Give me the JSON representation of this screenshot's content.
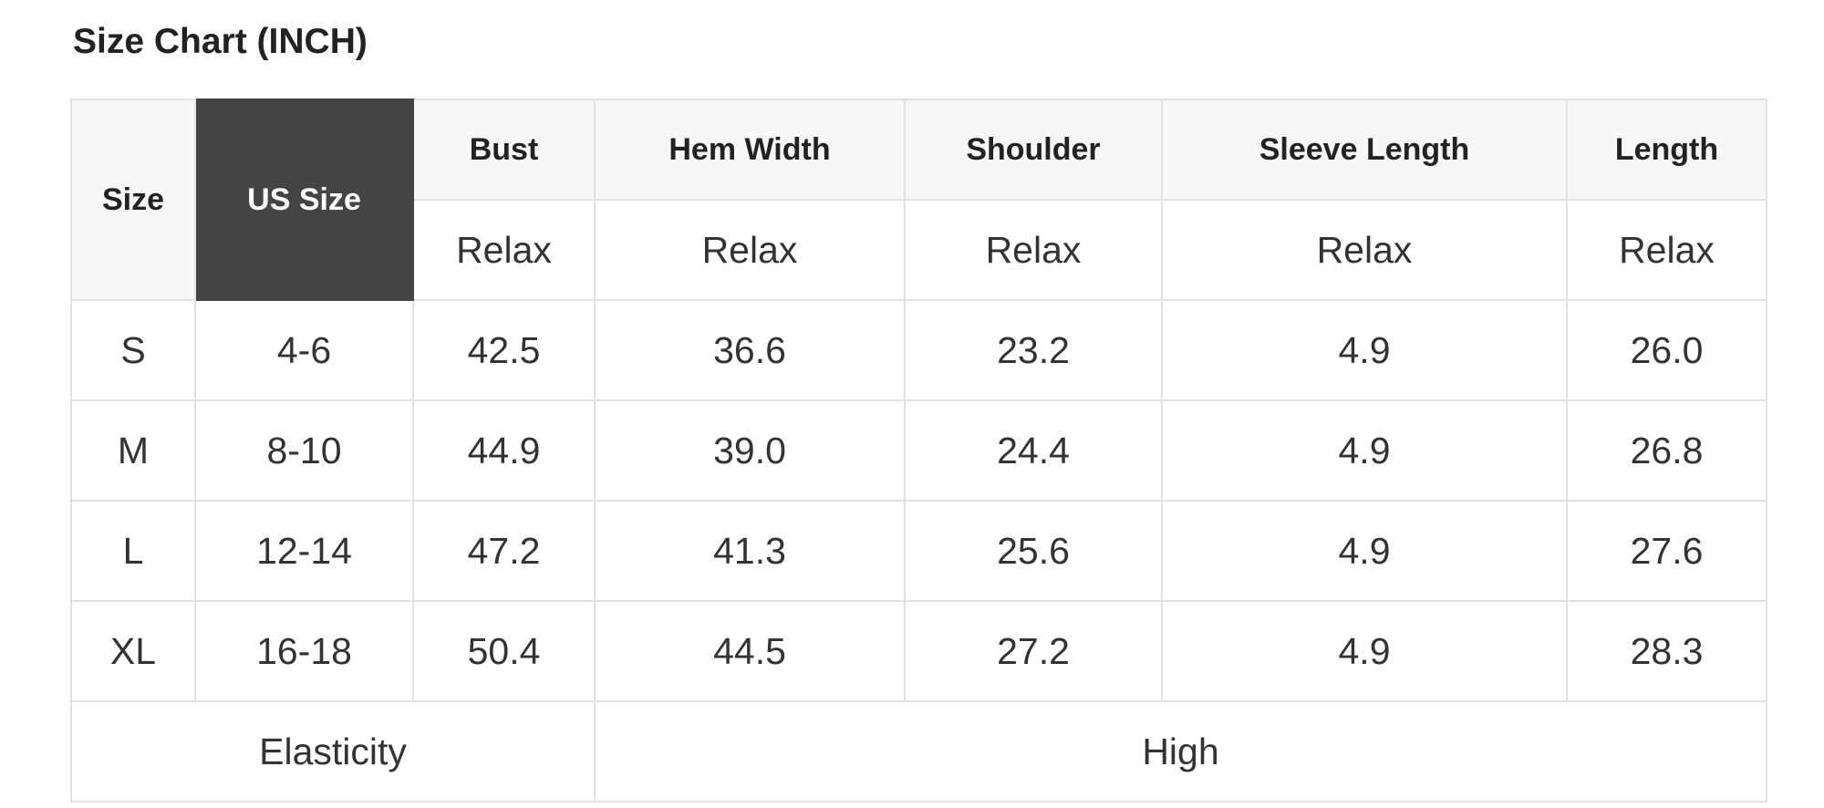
{
  "title": "Size Chart (INCH)",
  "headers": {
    "size": "Size",
    "us_size": "US Size",
    "columns": [
      "Bust",
      "Hem Width",
      "Shoulder",
      "Sleeve Length",
      "Length"
    ],
    "sub": [
      "Relax",
      "Relax",
      "Relax",
      "Relax",
      "Relax"
    ]
  },
  "rows": [
    {
      "size": "S",
      "us": "4-6",
      "values": [
        "42.5",
        "36.6",
        "23.2",
        "4.9",
        "26.0"
      ]
    },
    {
      "size": "M",
      "us": "8-10",
      "values": [
        "44.9",
        "39.0",
        "24.4",
        "4.9",
        "26.8"
      ]
    },
    {
      "size": "L",
      "us": "12-14",
      "values": [
        "47.2",
        "41.3",
        "25.6",
        "4.9",
        "27.6"
      ]
    },
    {
      "size": "XL",
      "us": "16-18",
      "values": [
        "50.4",
        "44.5",
        "27.2",
        "4.9",
        "28.3"
      ]
    }
  ],
  "footer": {
    "label": "Elasticity",
    "value": "High"
  },
  "colors": {
    "header_bg": "#f7f7f7",
    "us_size_bg": "#444444",
    "border": "#e2e2e2"
  }
}
